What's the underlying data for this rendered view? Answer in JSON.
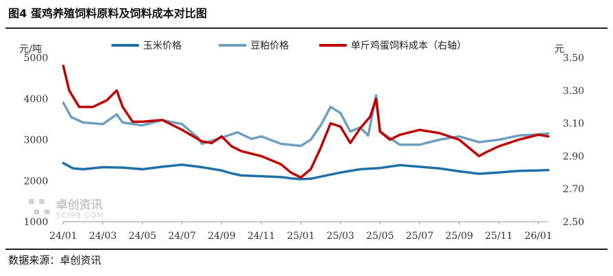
{
  "title": "图4  蛋鸡养殖饲料原料及饲料成本对比图",
  "source": "数据来源：卓创资讯",
  "watermark": {
    "name": "卓创资讯",
    "site": "SCI99.COM"
  },
  "colors": {
    "corn": "#1F6FA8",
    "soy": "#6E9FBF",
    "feed": "#C00000",
    "axis": "#999999"
  },
  "chart_data": {
    "type": "line",
    "left_axis": {
      "unit": "元/吨",
      "ylim": [
        1000,
        5000
      ],
      "ticks": [
        1000,
        2000,
        3000,
        4000,
        5000
      ]
    },
    "right_axis": {
      "unit": "元",
      "ylim": [
        2.5,
        3.5
      ],
      "ticks": [
        "2.50",
        "2.70",
        "2.90",
        "3.10",
        "3.30",
        "3.50"
      ]
    },
    "x_ticks": [
      "24/01",
      "24/03",
      "24/05",
      "24/07",
      "24/09",
      "24/11",
      "25/01",
      "25/03",
      "25/05",
      "25/07",
      "25/09",
      "25/11",
      "26/01"
    ],
    "x_range": [
      0,
      24.5
    ],
    "legend": {
      "placement": "top",
      "entries": [
        "玉米价格",
        "豆粕价格",
        "单斤鸡蛋饲料成本（右轴）"
      ]
    },
    "series": [
      {
        "name": "玉米价格",
        "axis": "left",
        "color": "#1F6FA8",
        "x": [
          0,
          0.5,
          1,
          2,
          3,
          4,
          5,
          6,
          7,
          8,
          8.5,
          9,
          10,
          11,
          11.5,
          12,
          12.5,
          13,
          14,
          15,
          16,
          17,
          18,
          19,
          20,
          21,
          22,
          23,
          24,
          24.5
        ],
        "y": [
          2430,
          2300,
          2280,
          2330,
          2320,
          2280,
          2340,
          2390,
          2330,
          2250,
          2180,
          2130,
          2110,
          2090,
          2060,
          2040,
          2050,
          2100,
          2200,
          2280,
          2310,
          2380,
          2340,
          2300,
          2230,
          2170,
          2200,
          2240,
          2250,
          2260
        ]
      },
      {
        "name": "豆粕价格",
        "axis": "left",
        "color": "#6E9FBF",
        "x": [
          0,
          0.4,
          1,
          2,
          2.7,
          3,
          4,
          5,
          6,
          6.8,
          7,
          8,
          8.8,
          9.5,
          10,
          11,
          12,
          12.5,
          13,
          13.5,
          14,
          14.5,
          15,
          15.4,
          15.8,
          16,
          17,
          18,
          19,
          20,
          21,
          22,
          23,
          24,
          24.5
        ],
        "y": [
          3900,
          3550,
          3420,
          3380,
          3620,
          3420,
          3350,
          3480,
          3380,
          3050,
          2900,
          3050,
          3180,
          3020,
          3080,
          2900,
          2850,
          3000,
          3350,
          3800,
          3650,
          3200,
          3300,
          3100,
          4080,
          3200,
          2880,
          2880,
          3000,
          3080,
          2940,
          3000,
          3100,
          3130,
          3150
        ]
      },
      {
        "name": "单斤鸡蛋饲料成本（右轴）",
        "axis": "right",
        "color": "#C00000",
        "x": [
          0,
          0.3,
          0.8,
          1.5,
          2.2,
          2.7,
          3,
          3.5,
          4,
          5,
          6,
          7,
          7.5,
          8,
          8.5,
          9,
          10,
          11,
          11.5,
          12,
          12.5,
          13,
          13.5,
          14,
          14.5,
          15,
          15.5,
          15.8,
          16,
          16.5,
          17,
          18,
          19,
          20,
          21,
          21.3,
          22,
          23,
          24,
          24.5
        ],
        "y": [
          3.45,
          3.3,
          3.2,
          3.2,
          3.24,
          3.3,
          3.2,
          3.11,
          3.11,
          3.12,
          3.06,
          2.99,
          2.98,
          3.02,
          2.96,
          2.93,
          2.9,
          2.85,
          2.8,
          2.77,
          2.82,
          2.95,
          3.1,
          3.08,
          2.98,
          3.07,
          3.14,
          3.25,
          3.05,
          3.0,
          3.03,
          3.06,
          3.04,
          3.0,
          2.9,
          2.92,
          2.96,
          3.0,
          3.03,
          3.02
        ]
      }
    ]
  }
}
